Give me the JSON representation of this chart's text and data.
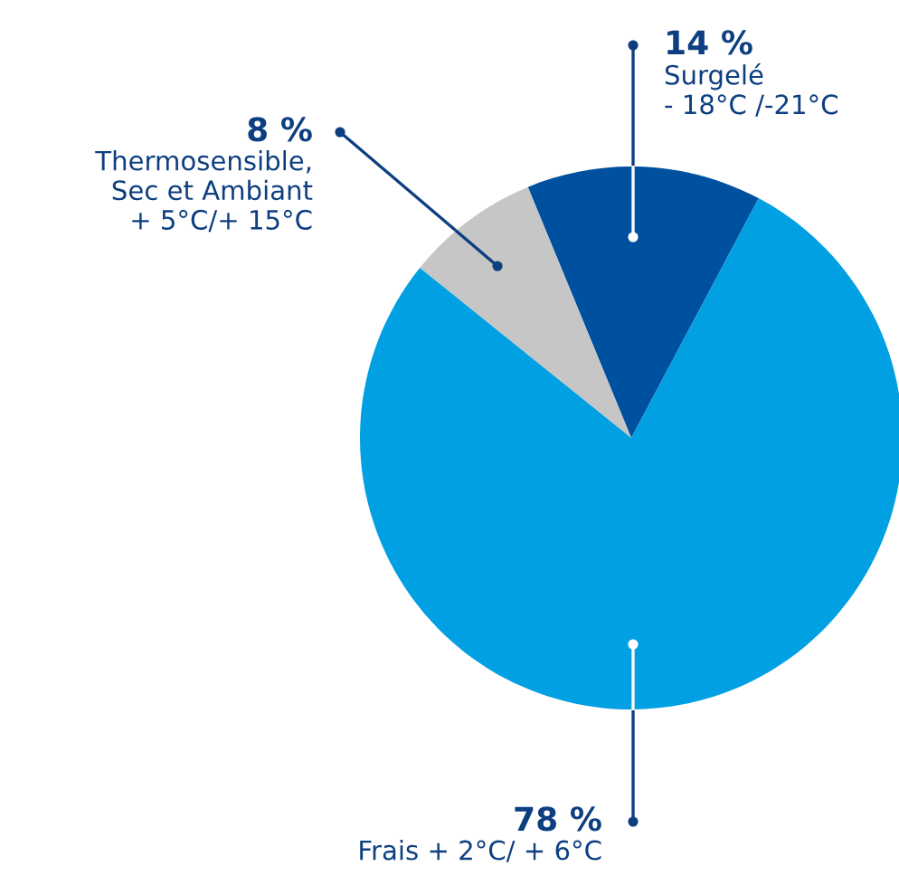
{
  "chart_data": {
    "type": "pie",
    "categories": [
      "Surgelé\n- 18°C /-21°C",
      "Thermosensible,\nSec et Ambiant\n+ 5°C/+ 15°C",
      "Frais + 2°C/ + 6°C"
    ],
    "values": [
      14,
      8,
      78
    ],
    "colors": [
      "#0050a0",
      "#c6c6c6",
      "#00a0e2"
    ],
    "value_labels": [
      "14 %",
      "8 %",
      "78 %"
    ]
  }
}
